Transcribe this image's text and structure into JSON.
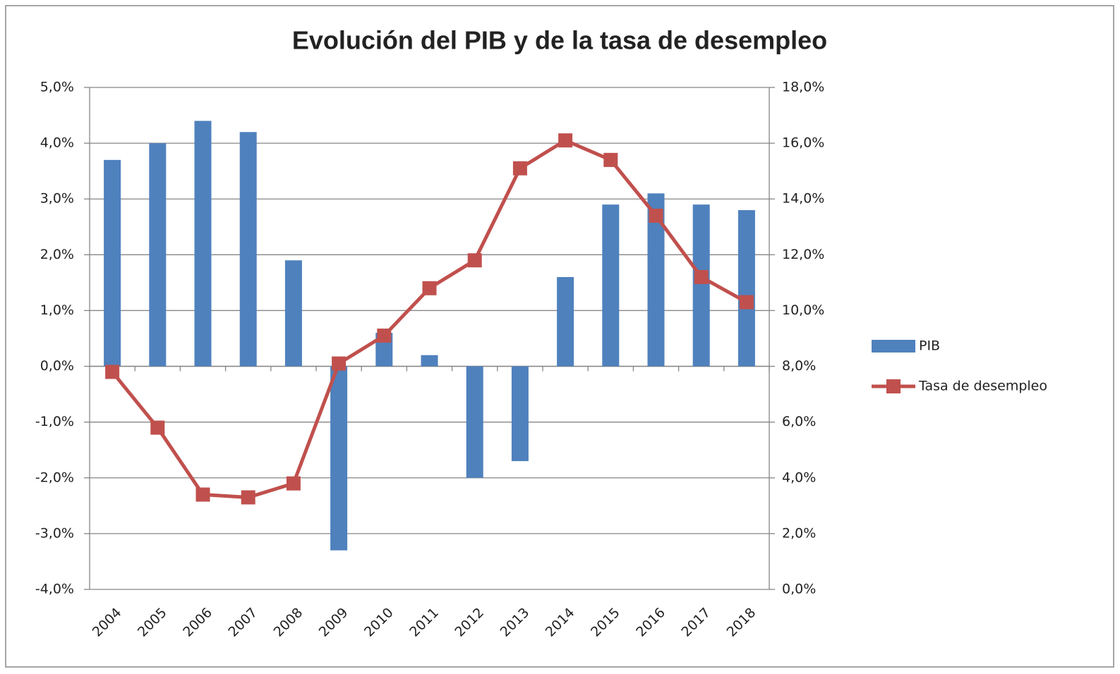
{
  "chart_data": {
    "type": "bar",
    "title": "Evolución del PIB y de la tasa de desempleo",
    "categories": [
      "2004",
      "2005",
      "2006",
      "2007",
      "2008",
      "2009",
      "2010",
      "2011",
      "2012",
      "2013",
      "2014",
      "2015",
      "2016",
      "2017",
      "2018"
    ],
    "series": [
      {
        "name": "PIB",
        "type": "bar",
        "color": "#4f81bd",
        "values": [
          3.7,
          4.0,
          4.4,
          4.2,
          1.9,
          -3.3,
          0.6,
          0.2,
          -2.0,
          -1.7,
          1.6,
          2.9,
          3.1,
          2.9,
          2.8
        ]
      },
      {
        "name": "Tasa de desempleo",
        "type": "line",
        "axis": "y2",
        "color": "#c0504d",
        "values": [
          7.8,
          5.8,
          3.4,
          3.3,
          3.8,
          8.1,
          9.1,
          10.8,
          11.8,
          15.1,
          16.1,
          15.4,
          13.4,
          11.2,
          10.3
        ]
      }
    ],
    "ylim": [
      -4,
      5
    ],
    "yticks": [
      {
        "value": 5,
        "label": "5,0%"
      },
      {
        "value": 4,
        "label": "4,0%"
      },
      {
        "value": 3,
        "label": "3,0%"
      },
      {
        "value": 2,
        "label": "2,0%"
      },
      {
        "value": 1,
        "label": "1,0%"
      },
      {
        "value": 0,
        "label": "0,0%"
      },
      {
        "value": -1,
        "label": "-1,0%"
      },
      {
        "value": -2,
        "label": "-2,0%"
      },
      {
        "value": -3,
        "label": "-3,0%"
      },
      {
        "value": -4,
        "label": "-4,0%"
      }
    ],
    "y2lim": [
      0,
      18
    ],
    "y2ticks": [
      {
        "value": 18,
        "label": "18,0%"
      },
      {
        "value": 16,
        "label": "16,0%"
      },
      {
        "value": 14,
        "label": "14,0%"
      },
      {
        "value": 12,
        "label": "12,0%"
      },
      {
        "value": 10,
        "label": "10,0%"
      },
      {
        "value": 8,
        "label": "8,0%"
      },
      {
        "value": 6,
        "label": "6,0%"
      },
      {
        "value": 4,
        "label": "4,0%"
      },
      {
        "value": 2,
        "label": "2,0%"
      },
      {
        "value": 0,
        "label": "0,0%"
      }
    ],
    "grid": true,
    "legend": "right"
  }
}
